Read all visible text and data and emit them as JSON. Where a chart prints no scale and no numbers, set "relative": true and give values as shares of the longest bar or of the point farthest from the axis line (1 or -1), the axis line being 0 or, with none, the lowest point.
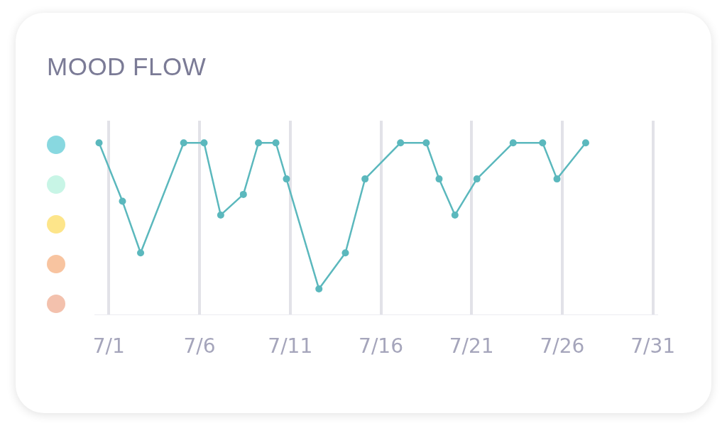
{
  "chart_data": {
    "type": "line",
    "title": "MOOD FLOW",
    "relative": true,
    "x": [
      "--06-30T11:00",
      "--07-01T18:00",
      "--07-02T18:00",
      "--07-05T03:00",
      "--07-06T06:00",
      "--07-07T04:00",
      "--07-08T10:00",
      "--07-09T06:00",
      "--07-10T05:00",
      "--07-10T19:00",
      "--07-12T14:00",
      "--07-14T01:00",
      "--07-15T03:00",
      "--07-17T02:00",
      "--07-18T12:00",
      "--07-19T05:00",
      "--07-20T02:00",
      "--07-21T07:00",
      "--07-23T07:00",
      "--07-24T22:00",
      "--07-25T17:00",
      "--07-27T07:00"
    ],
    "series": [
      {
        "color": "#5bb8bd",
        "values": [
          1,
          0.66,
          0.36,
          1,
          1,
          0.58,
          0.7,
          1,
          1,
          0.79,
          0.15,
          0.36,
          0.79,
          1,
          1,
          0.79,
          0.58,
          0.79,
          1,
          1,
          0.79,
          1
        ]
      }
    ],
    "xlim": [
      "--06-30T05:00",
      "--07-31T05:00"
    ],
    "xticks": [
      {
        "value": "--07-01",
        "label": "7/1"
      },
      {
        "value": "--07-06",
        "label": "7/6"
      },
      {
        "value": "--07-11",
        "label": "7/11"
      },
      {
        "value": "--07-16",
        "label": "7/16"
      },
      {
        "value": "--07-21",
        "label": "7/21"
      },
      {
        "value": "--07-26",
        "label": "7/26"
      },
      {
        "value": "--07-31",
        "label": "7/31"
      }
    ],
    "grid": "x",
    "marker": "circle",
    "line_style": "solid",
    "legend": false
  }
}
